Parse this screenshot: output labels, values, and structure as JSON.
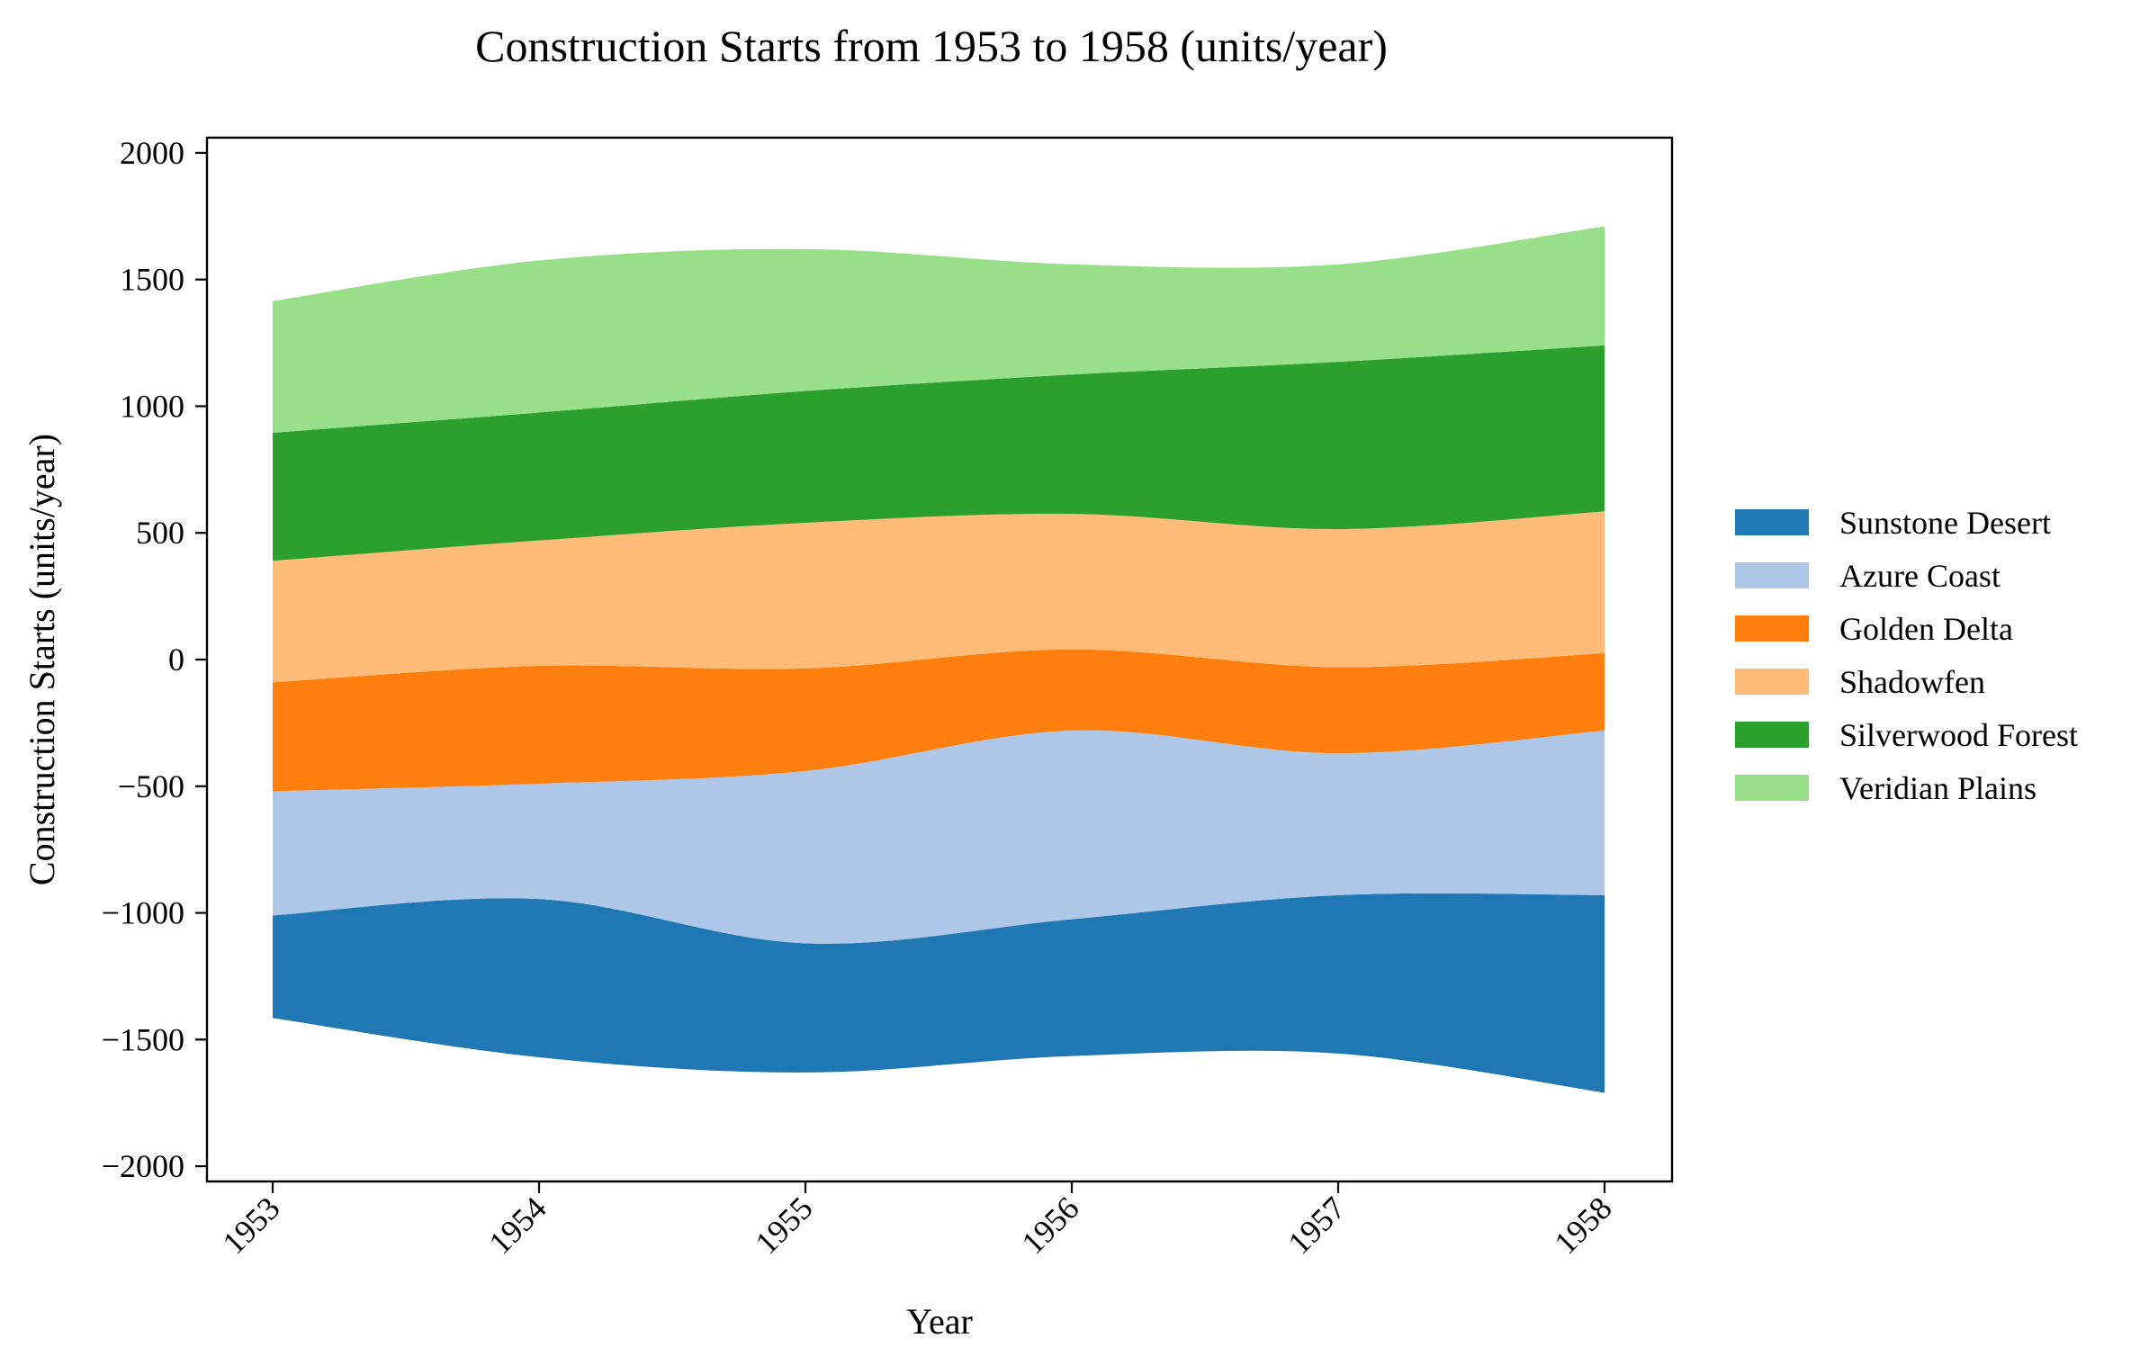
{
  "chart_data": {
    "type": "area",
    "subtype": "streamgraph",
    "title": "Construction Starts from 1953 to 1958 (units/year)",
    "xlabel": "Year",
    "ylabel": "Construction Starts (units/year)",
    "x": [
      1953,
      1954,
      1955,
      1956,
      1957,
      1958
    ],
    "x_tick_labels": [
      "1953",
      "1954",
      "1955",
      "1956",
      "1957",
      "1958"
    ],
    "ylim": [
      -2060,
      2060
    ],
    "y_ticks": [
      -2000,
      -1500,
      -1000,
      -500,
      0,
      500,
      1000,
      1500,
      2000
    ],
    "y_tick_labels": [
      "−2000",
      "−1500",
      "−1000",
      "−500",
      "0",
      "500",
      "1000",
      "1500",
      "2000"
    ],
    "baseline": [
      -1415,
      -1570,
      -1630,
      -1565,
      -1555,
      -1710
    ],
    "series": [
      {
        "name": "Sunstone Desert",
        "color": "#1f77b4",
        "values": [
          405,
          625,
          510,
          540,
          625,
          780
        ]
      },
      {
        "name": "Azure Coast",
        "color": "#aec7e8",
        "values": [
          490,
          455,
          680,
          745,
          560,
          650
        ]
      },
      {
        "name": "Golden Delta",
        "color": "#ff7f0e",
        "values": [
          430,
          465,
          405,
          320,
          340,
          305
        ]
      },
      {
        "name": "Shadowfen",
        "color": "#ffbb78",
        "values": [
          480,
          495,
          575,
          535,
          545,
          560
        ]
      },
      {
        "name": "Silverwood Forest",
        "color": "#2ca02c",
        "values": [
          505,
          505,
          520,
          550,
          660,
          655
        ]
      },
      {
        "name": "Veridian Plains",
        "color": "#98df8a",
        "values": [
          520,
          600,
          560,
          435,
          385,
          470
        ]
      }
    ],
    "legend_position": "right",
    "grid": false
  }
}
